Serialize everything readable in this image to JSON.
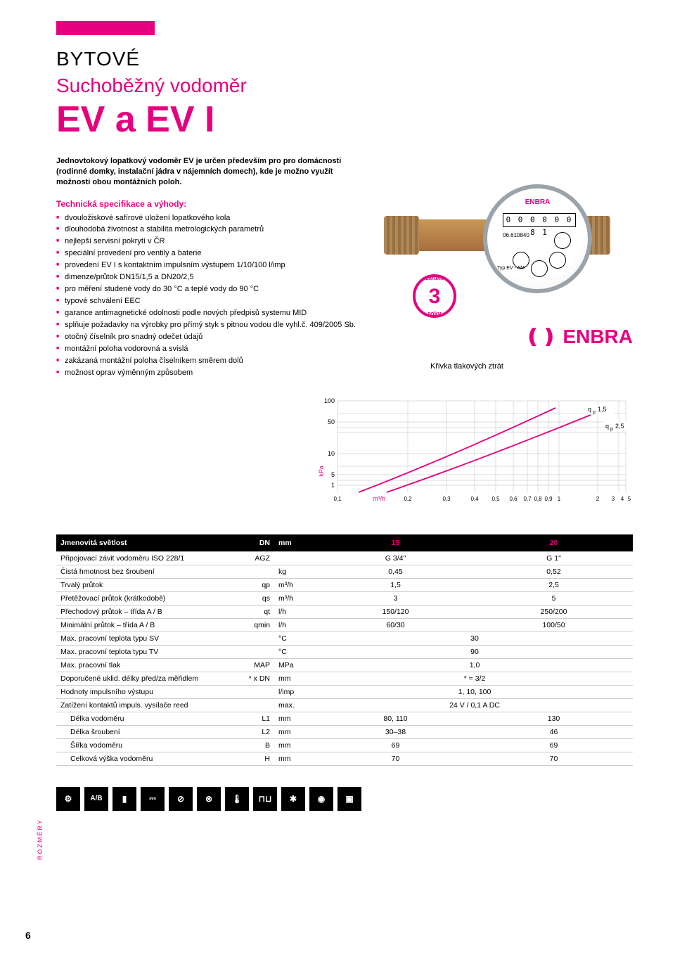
{
  "header": {
    "category": "BYTOVÉ",
    "subtitle": "Suchoběžný vodoměr",
    "title": "EV a EV I"
  },
  "intro": "Jednovtokový lopatkový vodoměr EV je určen především pro pro domácnosti (rodinné domky, instalační jádra v nájemních domech), kde je možno využít možnosti obou montážních poloh.",
  "tech_head": "Technická specifikace a výhody:",
  "bullets": [
    "dvouložiskové safírové uložení lopatkového kola",
    "dlouhodobá životnost a stabilita metrologických parametrů",
    "nejlepší servisní pokrytí v ČR",
    "speciální provedení pro ventily a baterie",
    "provedení EV I s kontaktním impulsním výstupem 1/10/100 l/imp",
    "dimenze/průtok DN15/1,5 a DN20/2,5",
    "pro měření studené vody do 30 °C a teplé vody do 90 °C",
    "typové schválení EEC",
    "garance antimagnetické odolnosti podle nových předpisů systemu MID",
    "splňuje požadavky na výrobky pro přímý styk s pitnou vodou dle vyhl.č. 409/2005 Sb.",
    "otočný číselník pro snadný odečet údajů",
    "montážní poloha vodorovná a svislá",
    "zakázaná montážní poloha číselníkem směrem dolů",
    "možnost oprav výměnným způsobem"
  ],
  "product": {
    "dial_digits": "0 0 0 0 0 0 8 1",
    "serial": "06.610840",
    "type_label": "Typ EV - AM",
    "brand": "ENBRA",
    "warranty_years": "3"
  },
  "chart": {
    "title": "Křivka tlakových ztrát",
    "y_ticks": [
      "1",
      "5",
      "10",
      "50",
      "100"
    ],
    "y_unit": "kPa",
    "x_ticks": [
      "0,1",
      "0,2",
      "0,3",
      "0,4",
      "0,5",
      "0,6",
      "0,7",
      "0,8",
      "0,9",
      "1",
      "2",
      "3",
      "4",
      "5"
    ],
    "x_unit": "m³/h",
    "series": [
      {
        "label": "qp 1,5",
        "color": "#e6007e"
      },
      {
        "label": "qp 2,5",
        "color": "#e6007e"
      }
    ]
  },
  "table": {
    "head": {
      "name": "Jmenovitá světlost",
      "sym": "DN",
      "unit": "mm",
      "v1": "15",
      "v2": "20"
    },
    "rows": [
      {
        "name": "Připojovací závit vodoměru ISO 228/1",
        "sym": "AGZ",
        "unit": "",
        "v1": "G 3/4\"",
        "v2": "G 1\""
      },
      {
        "name": "Čistá hmotnost bez šroubení",
        "sym": "",
        "unit": "kg",
        "v1": "0,45",
        "v2": "0,52"
      },
      {
        "name": "Trvalý průtok",
        "sym": "qp",
        "unit": "m³/h",
        "v1": "1,5",
        "v2": "2,5"
      },
      {
        "name": "Přetěžovací průtok (krátkodobě)",
        "sym": "qs",
        "unit": "m³/h",
        "v1": "3",
        "v2": "5"
      },
      {
        "name": "Přechodový průtok – třída A / B",
        "sym": "qt",
        "unit": "l/h",
        "v1": "150/120",
        "v2": "250/200"
      },
      {
        "name": "Minimální průtok – třída A / B",
        "sym": "qmin",
        "unit": "l/h",
        "v1": "60/30",
        "v2": "100/50"
      },
      {
        "name": "Max. pracovní teplota typu SV",
        "sym": "",
        "unit": "°C",
        "span": "30"
      },
      {
        "name": "Max. pracovní teplota typu TV",
        "sym": "",
        "unit": "°C",
        "span": "90"
      },
      {
        "name": "Max. pracovní tlak",
        "sym": "MAP",
        "unit": "MPa",
        "span": "1,0"
      },
      {
        "name": "Doporučené uklid. délky před/za měřidlem",
        "sym": "* x DN",
        "unit": "mm",
        "span": "* = 3/2"
      },
      {
        "name": "Hodnoty impulsního výstupu",
        "sym": "",
        "unit": "l/imp",
        "span": "1, 10, 100"
      },
      {
        "name": "Zatížení kontaktů impuls. vysílače reed",
        "sym": "",
        "unit": "max.",
        "span": "24 V / 0,1 A DC"
      }
    ],
    "dims_label": "ROZMĚRY",
    "dims": [
      {
        "name": "Délka vodoměru",
        "sym": "L1",
        "unit": "mm",
        "v1": "80, 110",
        "v2": "130"
      },
      {
        "name": "Délka šroubení",
        "sym": "L2",
        "unit": "mm",
        "v1": "30–38",
        "v2": "46"
      },
      {
        "name": "Šířka vodoměru",
        "sym": "B",
        "unit": "mm",
        "v1": "69",
        "v2": "69"
      },
      {
        "name": "Celková výška vodoměru",
        "sym": "H",
        "unit": "mm",
        "v1": "70",
        "v2": "70"
      }
    ]
  },
  "icons": [
    "⚙",
    "A/B",
    "▮",
    "⎓",
    "⊘",
    "⊗",
    "🌡",
    "⊓⊔",
    "✱",
    "◉",
    "▣"
  ],
  "page_num": "6"
}
